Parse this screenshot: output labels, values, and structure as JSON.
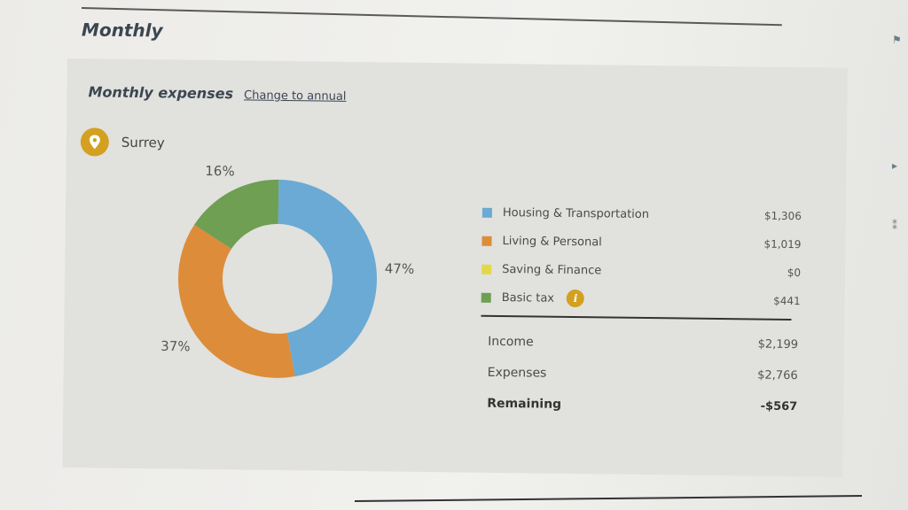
{
  "section_title": "Monthly",
  "panel": {
    "title": "Monthly expenses",
    "change_link": "Change to annual",
    "location": "Surrey"
  },
  "legend": [
    {
      "label": "Housing & Transportation",
      "value": "$1,306",
      "color": "#6aaad4",
      "icon": "square-swatch"
    },
    {
      "label": "Living & Personal",
      "value": "$1,019",
      "color": "#dd8c3a",
      "icon": "square-swatch"
    },
    {
      "label": "Saving & Finance",
      "value": "$0",
      "color": "#e3d84a",
      "icon": "square-swatch"
    },
    {
      "label": "Basic tax",
      "value": "$441",
      "color": "#6e9f52",
      "icon": "square-swatch",
      "info_icon": "i"
    }
  ],
  "summary": {
    "income_label": "Income",
    "income_value": "$2,199",
    "expenses_label": "Expenses",
    "expenses_value": "$2,766",
    "remaining_label": "Remaining",
    "remaining_value": "-$567"
  },
  "chart_data": {
    "type": "pie",
    "style": "donut",
    "categories": [
      "Housing & Transportation",
      "Living & Personal",
      "Saving & Finance",
      "Basic tax"
    ],
    "values": [
      47,
      37,
      0,
      16
    ],
    "data_labels": [
      "47%",
      "37%",
      "",
      "16%"
    ],
    "colors": [
      "#6aaad4",
      "#dd8c3a",
      "#e3d84a",
      "#6e9f52"
    ],
    "unit": "%",
    "legend_placement": "right"
  }
}
